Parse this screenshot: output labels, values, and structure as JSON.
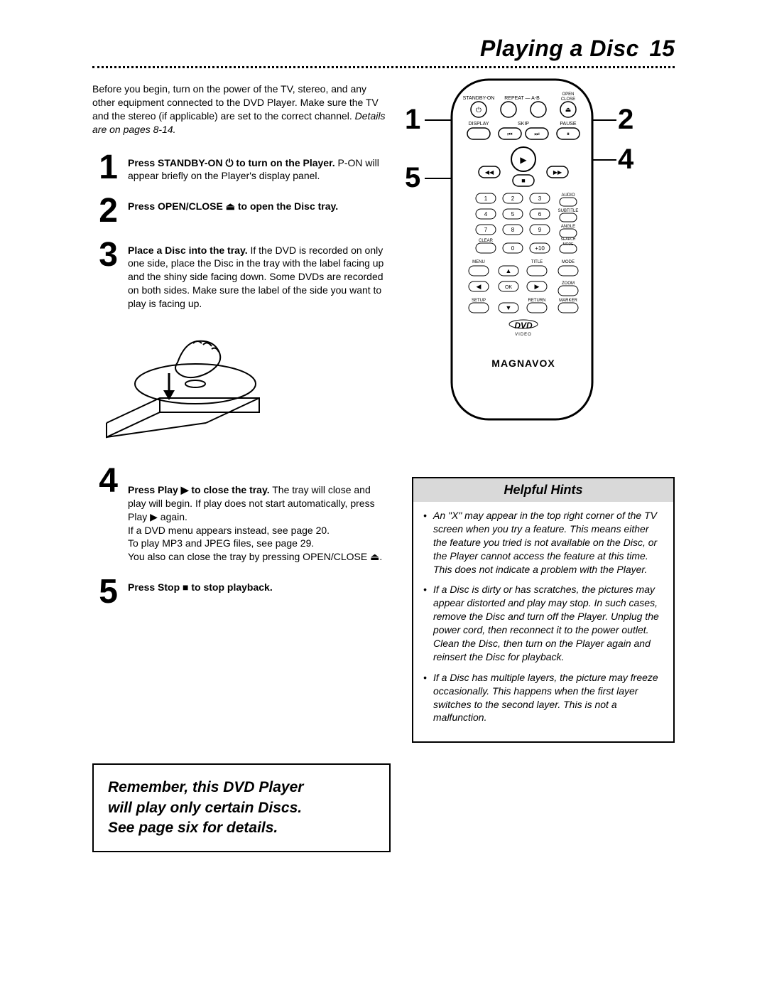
{
  "header": {
    "title": "Playing a Disc",
    "page_number": "15"
  },
  "intro": {
    "text": "Before you begin, turn on the power of the TV, stereo, and any other equipment connected to the DVD Player. Make sure the TV and the stereo (if applicable) are set to the correct channel. ",
    "em": "Details are on pages 8-14."
  },
  "steps": [
    {
      "n": "1",
      "bold": "Press STANDBY-ON ⏻ to turn on the Player.",
      "rest": " P-ON will appear briefly on the Player's display panel."
    },
    {
      "n": "2",
      "bold": "Press OPEN/CLOSE ⏏ to open the Disc tray.",
      "rest": ""
    },
    {
      "n": "3",
      "bold": "Place a Disc into the tray.",
      "rest": " If the DVD is recorded on only one side, place the Disc in the tray with the label facing up and the shiny side facing down. Some DVDs are recorded on both sides. Make sure the label of the side you want to play is facing up."
    },
    {
      "n": "4",
      "bold": "Press Play ▶ to close the tray.",
      "rest": " The tray will close and play will begin. If play does not start automatically, press Play ▶ again.\nIf a DVD menu appears instead, see page 20.\nTo play MP3 and JPEG files, see page 29.\nYou also can close the tray by pressing OPEN/CLOSE ⏏."
    },
    {
      "n": "5",
      "bold": "Press Stop ■ to stop playback.",
      "rest": ""
    }
  ],
  "remember": {
    "l1": "Remember, this DVD Player",
    "l2": "will play only certain Discs.",
    "l3": "See page six for details."
  },
  "hints": {
    "title": "Helpful Hints",
    "items": [
      "An \"X\" may appear in the top right corner of the TV screen when you try a feature. This means either the feature you tried is not available on the Disc, or the Player cannot access the feature at this time. This does not indicate a problem with the Player.",
      "If a Disc is dirty or has scratches, the pictures may appear distorted and play may stop. In such cases, remove the Disc and turn off the Player. Unplug the power cord, then reconnect it to the power outlet. Clean the Disc, then turn on the Player again and reinsert the Disc for playback.",
      "If a Disc has multiple layers, the picture may freeze occasionally. This happens when the first layer switches to the second layer. This is not a malfunction."
    ]
  },
  "remote": {
    "brand": "MAGNAVOX",
    "callouts": {
      "c1": "1",
      "c2": "2",
      "c3": "5",
      "c4": "4"
    },
    "labels": {
      "standby": "STANDBY-ON",
      "repeat": "REPEAT — A-B",
      "open": "OPEN\nCLOSE",
      "display": "DISPLAY",
      "skip": "SKIP",
      "pause": "PAUSE",
      "audio": "AUDIO",
      "subtitle": "SUBTITLE",
      "angle": "ANGLE",
      "search": "SEARCH\nMODE",
      "clear": "CLEAR",
      "plus10": "+10",
      "menu": "MENU",
      "title": "TITLE",
      "mode": "MODE",
      "zoom": "ZOOM",
      "setup": "SETUP",
      "return": "RETURN",
      "marker": "MARKER",
      "dvd": "DVD",
      "video": "VIDEO"
    }
  }
}
